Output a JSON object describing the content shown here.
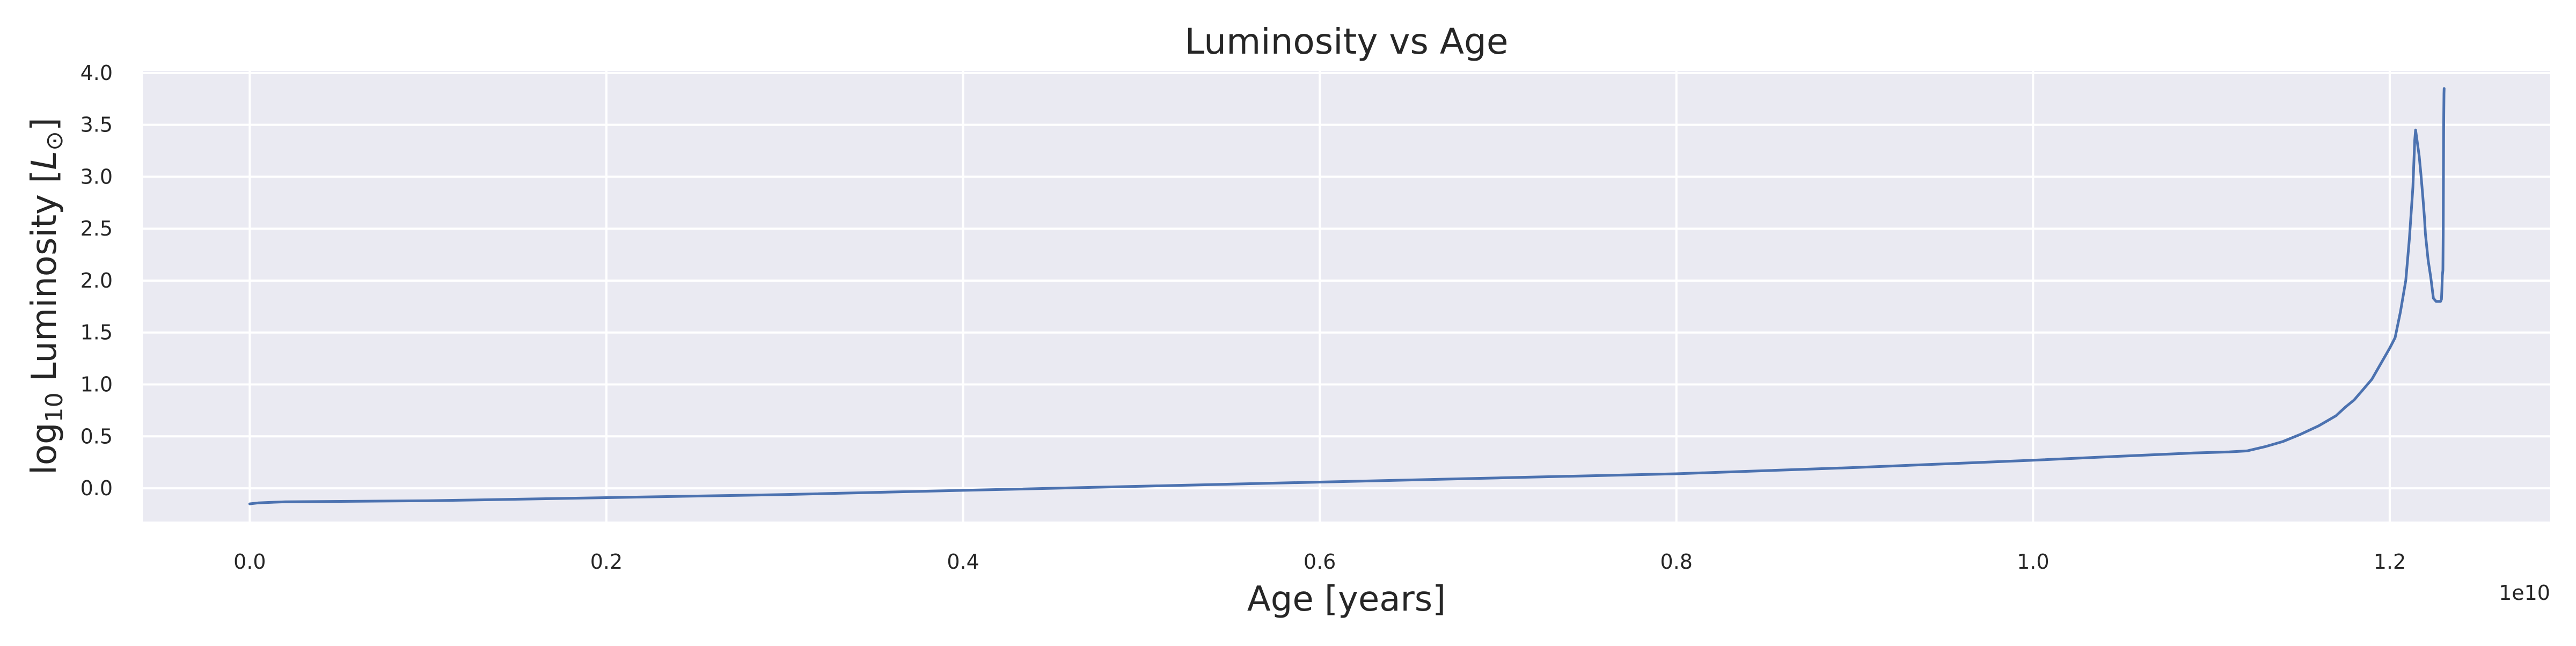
{
  "chart_data": {
    "type": "line",
    "title": "Luminosity vs Age",
    "xlabel": "Age [years]",
    "ylabel": {
      "prefix": "log",
      "sub": "10",
      "middle": " Luminosity [",
      "symbol": "L",
      "sun": "⊙",
      "suffix": "]"
    },
    "x_offset_label": "1e10",
    "x_scale_factor": 10000000000,
    "xlim": [
      -0.06,
      1.29
    ],
    "ylim": [
      -0.32,
      4.02
    ],
    "xticks": [
      0.0,
      0.2,
      0.4,
      0.6,
      0.8,
      1.0,
      1.2
    ],
    "xtick_labels": [
      "0.0",
      "0.2",
      "0.4",
      "0.6",
      "0.8",
      "1.0",
      "1.2"
    ],
    "yticks": [
      0.0,
      0.5,
      1.0,
      1.5,
      2.0,
      2.5,
      3.0,
      3.5,
      4.0
    ],
    "ytick_labels": [
      "0.0",
      "0.5",
      "1.0",
      "1.5",
      "2.0",
      "2.5",
      "3.0",
      "3.5",
      "4.0"
    ],
    "grid": true,
    "colors": {
      "background": "#eaeaf2",
      "grid": "#ffffff",
      "line": "#4c72b0"
    },
    "series": [
      {
        "x": [
          0.0,
          0.005,
          0.02,
          0.1,
          0.2,
          0.3,
          0.4,
          0.5,
          0.6,
          0.7,
          0.8,
          0.9,
          1.0,
          1.05,
          1.09,
          1.11,
          1.12,
          1.13,
          1.14,
          1.15,
          1.16,
          1.165,
          1.17,
          1.175,
          1.18,
          1.185,
          1.19,
          1.195,
          1.2,
          1.203,
          1.206,
          1.209,
          1.211,
          1.213,
          1.214,
          1.2145,
          1.2165,
          1.2175,
          1.2185,
          1.2195,
          1.22,
          1.2215,
          1.223,
          1.2245,
          1.226,
          1.2272,
          1.228,
          1.2285,
          1.229,
          1.2292,
          1.2295,
          1.2298,
          1.23,
          1.2302,
          1.2303,
          1.2304,
          1.2305
        ],
        "y": [
          -0.15,
          -0.14,
          -0.13,
          -0.12,
          -0.09,
          -0.06,
          -0.02,
          0.02,
          0.06,
          0.1,
          0.14,
          0.2,
          0.27,
          0.31,
          0.34,
          0.35,
          0.36,
          0.4,
          0.45,
          0.52,
          0.6,
          0.65,
          0.7,
          0.78,
          0.85,
          0.95,
          1.05,
          1.2,
          1.35,
          1.45,
          1.7,
          2.0,
          2.4,
          2.9,
          3.35,
          3.45,
          3.2,
          3.02,
          2.82,
          2.6,
          2.45,
          2.2,
          2.03,
          1.83,
          1.8,
          1.8,
          1.8,
          1.8,
          1.82,
          1.9,
          2.05,
          2.1,
          2.5,
          3.4,
          3.6,
          3.8,
          3.85
        ]
      }
    ]
  }
}
